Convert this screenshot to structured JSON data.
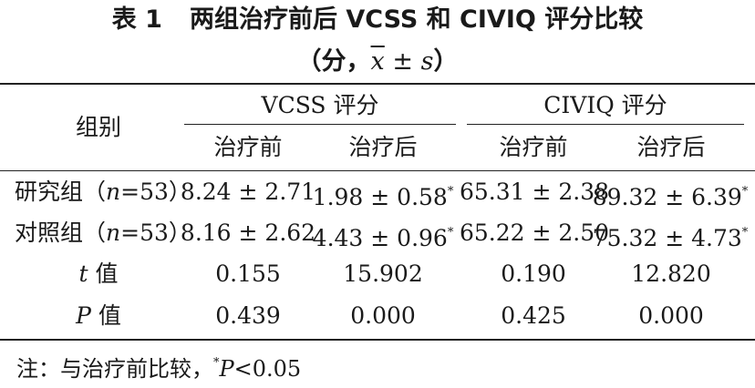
{
  "title": {
    "table_no": "表 1",
    "main": "两组治疗前后 VCSS 和 CIVIQ 评分比较",
    "unit_open": "（分，",
    "unit_mean": "x",
    "unit_pm": " ± ",
    "unit_sd": "s",
    "unit_close": "）"
  },
  "header": {
    "group_label": "组别",
    "vcss_label": "VCSS 评分",
    "civiq_label": "CIVIQ 评分",
    "before_label": "治疗前",
    "after_label": "治疗后"
  },
  "rows": [
    {
      "label_prefix": "研究组（",
      "label_n": "n",
      "label_suffix": "=53）",
      "vcss_before": "8.24 ± 2.71",
      "vcss_after": "1.98 ± 0.58",
      "vcss_after_mark": "*",
      "civiq_before": "65.31 ± 2.38",
      "civiq_after": "89.32 ± 6.39",
      "civiq_after_mark": "*"
    },
    {
      "label_prefix": "对照组（",
      "label_n": "n",
      "label_suffix": "=53）",
      "vcss_before": "8.16 ± 2.62",
      "vcss_after": "4.43 ± 0.96",
      "vcss_after_mark": "*",
      "civiq_before": "65.22 ± 2.50",
      "civiq_after": "75.32 ± 4.73",
      "civiq_after_mark": "*"
    }
  ],
  "stats": [
    {
      "symbol": "t",
      "label": " 值",
      "vcss_before": "0.155",
      "vcss_after": "15.902",
      "civiq_before": "0.190",
      "civiq_after": "12.820"
    },
    {
      "symbol": "P",
      "label": " 值",
      "vcss_before": "0.439",
      "vcss_after": "0.000",
      "civiq_before": "0.425",
      "civiq_after": "0.000"
    }
  ],
  "note": {
    "prefix": "注：与治疗前比较，",
    "mark": "*",
    "p": "P",
    "suffix": "<0.05"
  }
}
